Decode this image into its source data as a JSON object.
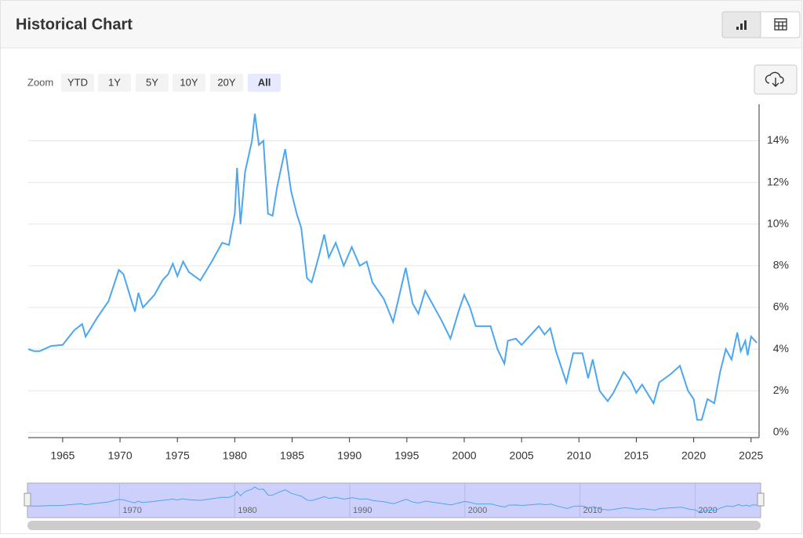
{
  "header": {
    "title": "Historical Chart"
  },
  "zoom": {
    "label": "Zoom",
    "buttons": [
      "YTD",
      "1Y",
      "5Y",
      "10Y",
      "20Y",
      "All"
    ],
    "selected": 5
  },
  "chart_data": {
    "type": "line",
    "color": "#4da6f0",
    "x": [
      1962.0,
      1962.5,
      1963,
      1964,
      1965,
      1966,
      1966.7,
      1967,
      1968,
      1969,
      1969.9,
      1970.3,
      1970.9,
      1971.3,
      1971.6,
      1972,
      1973,
      1973.7,
      1974.2,
      1974.6,
      1975,
      1975.5,
      1976,
      1977,
      1978,
      1978.9,
      1979.5,
      1980.0,
      1980.2,
      1980.5,
      1980.9,
      1981.5,
      1981.75,
      1982.1,
      1982.5,
      1982.9,
      1983.3,
      1983.7,
      1984.4,
      1984.9,
      1985.4,
      1985.8,
      1986.3,
      1986.7,
      1987.3,
      1987.8,
      1988.2,
      1988.8,
      1989.5,
      1990.2,
      1990.9,
      1991.5,
      1992,
      1993,
      1993.8,
      1994.9,
      1995.5,
      1996,
      1996.6,
      1997,
      1998,
      1998.8,
      1999.5,
      2000.0,
      2000.5,
      2001,
      2002.3,
      2002.9,
      2003.5,
      2003.8,
      2004.5,
      2005,
      2006.5,
      2007,
      2007.5,
      2008,
      2008.9,
      2009.5,
      2010.3,
      2010.8,
      2011.2,
      2011.8,
      2012.5,
      2013,
      2013.9,
      2014.5,
      2015,
      2015.5,
      2016.5,
      2017,
      2018,
      2018.8,
      2019.5,
      2020.0,
      2020.3,
      2020.7,
      2021.2,
      2021.8,
      2022.3,
      2022.8,
      2023.3,
      2023.8,
      2024.1,
      2024.5,
      2024.7,
      2025.0,
      2025.5
    ],
    "values": [
      4.0,
      3.9,
      3.9,
      4.15,
      4.2,
      4.9,
      5.2,
      4.6,
      5.5,
      6.3,
      7.8,
      7.6,
      6.5,
      5.8,
      6.7,
      6.0,
      6.6,
      7.3,
      7.6,
      8.1,
      7.5,
      8.2,
      7.7,
      7.3,
      8.2,
      9.1,
      9.0,
      10.5,
      12.7,
      10.0,
      12.5,
      14.0,
      15.3,
      13.8,
      14.0,
      10.5,
      10.4,
      11.8,
      13.6,
      11.6,
      10.5,
      9.8,
      7.4,
      7.2,
      8.4,
      9.5,
      8.4,
      9.1,
      8.0,
      8.9,
      8.0,
      8.2,
      7.2,
      6.4,
      5.3,
      7.9,
      6.2,
      5.7,
      6.8,
      6.4,
      5.4,
      4.5,
      5.8,
      6.6,
      6.0,
      5.1,
      5.1,
      4.0,
      3.3,
      4.4,
      4.5,
      4.2,
      5.1,
      4.7,
      5.0,
      3.9,
      2.4,
      3.8,
      3.8,
      2.6,
      3.5,
      2.0,
      1.5,
      1.9,
      2.9,
      2.5,
      1.9,
      2.3,
      1.4,
      2.4,
      2.8,
      3.2,
      2.0,
      1.6,
      0.6,
      0.6,
      1.6,
      1.4,
      2.9,
      4.0,
      3.5,
      4.8,
      3.9,
      4.4,
      3.7,
      4.6,
      4.3
    ],
    "xlim": [
      1962,
      2025.7
    ],
    "ylim": [
      -0.25,
      15.75
    ],
    "xticks": [
      1965,
      1970,
      1975,
      1980,
      1985,
      1990,
      1995,
      2000,
      2005,
      2010,
      2015,
      2020,
      2025
    ],
    "yticks": [
      {
        "value": 0,
        "label": "0%"
      },
      {
        "value": 2,
        "label": "2%"
      },
      {
        "value": 4,
        "label": "4%"
      },
      {
        "value": 6,
        "label": "6%"
      },
      {
        "value": 8,
        "label": "8%"
      },
      {
        "value": 10,
        "label": "10%"
      },
      {
        "value": 12,
        "label": "12%"
      },
      {
        "value": 14,
        "label": "14%"
      }
    ],
    "grid": true,
    "navigator_xticks": [
      1970,
      1980,
      1990,
      2000,
      2010,
      2020
    ]
  }
}
